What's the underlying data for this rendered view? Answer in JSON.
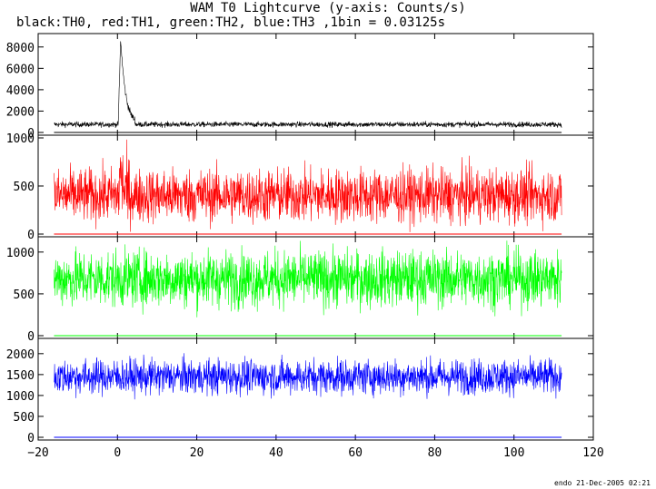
{
  "title": "WAM T0 Lightcurve (y-axis: Counts/s)",
  "subtitle": "black:TH0, red:TH1, green:TH2, blue:TH3 ,1bin = 0.03125s",
  "footer": "endo 21-Dec-2005 02:21",
  "colors": {
    "TH0": "#000000",
    "TH1": "#ff0000",
    "TH2": "#00ff00",
    "TH3": "#0000ff"
  },
  "chart_data": {
    "type": "line",
    "xlim": [
      -20,
      120
    ],
    "x_ticks": [
      -20,
      0,
      20,
      40,
      60,
      80,
      100,
      120
    ],
    "x_tick_labels": [
      "−20",
      "0",
      "20",
      "40",
      "60",
      "80",
      "100",
      "120"
    ],
    "x_range_data": [
      -16,
      112
    ],
    "panels": [
      {
        "name": "TH0",
        "color": "#000000",
        "ylim": [
          0,
          9000
        ],
        "yticks": [
          0,
          2000,
          4000,
          6000,
          8000
        ],
        "ytick_labels": [
          "0",
          "2000",
          "4000",
          "6000",
          "8000"
        ],
        "baseline": 750,
        "noise": 180,
        "burst": {
          "start": 0.2,
          "peak_time": 0.8,
          "peak": 8800,
          "end": 4.5
        }
      },
      {
        "name": "TH1",
        "color": "#ff0000",
        "ylim": [
          0,
          1000
        ],
        "yticks": [
          0,
          500,
          1000
        ],
        "ytick_labels": [
          "0",
          "500",
          "1000"
        ],
        "baseline": 400,
        "noise": 200,
        "burst": {
          "start": 0.2,
          "peak_time": 0.8,
          "peak": 650,
          "end": 3.0
        }
      },
      {
        "name": "TH2",
        "color": "#00ff00",
        "ylim": [
          0,
          1150
        ],
        "yticks": [
          0,
          500,
          1000
        ],
        "ytick_labels": [
          "0",
          "500",
          "1000"
        ],
        "baseline": 680,
        "noise": 240,
        "burst": null
      },
      {
        "name": "TH3",
        "color": "#0000ff",
        "ylim": [
          0,
          2300
        ],
        "yticks": [
          0,
          500,
          1000,
          1500,
          2000
        ],
        "ytick_labels": [
          "0",
          "500",
          "1000",
          "1500",
          "2000"
        ],
        "baseline": 1450,
        "noise": 300,
        "burst": null
      }
    ]
  }
}
